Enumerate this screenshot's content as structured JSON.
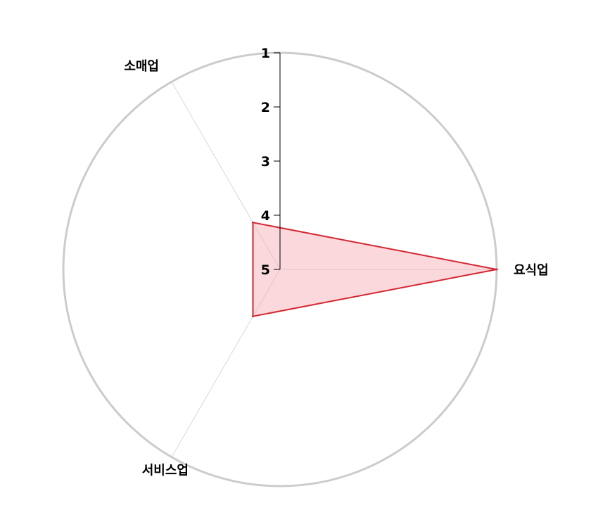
{
  "chart_data": {
    "type": "radar",
    "axes": [
      "요식업",
      "소매업",
      "서비스업"
    ],
    "values": [
      1,
      4,
      4
    ],
    "r_ticks": [
      "1",
      "2",
      "3",
      "4",
      "5"
    ],
    "r_range": [
      1,
      5
    ],
    "r_direction": "inverted (1 at outer edge, 5 at center)",
    "fill_color": "#f4a9b0",
    "line_color": "#d62731",
    "band_color": "#f5f5f5",
    "outer_ring_color": "#cccccc"
  }
}
